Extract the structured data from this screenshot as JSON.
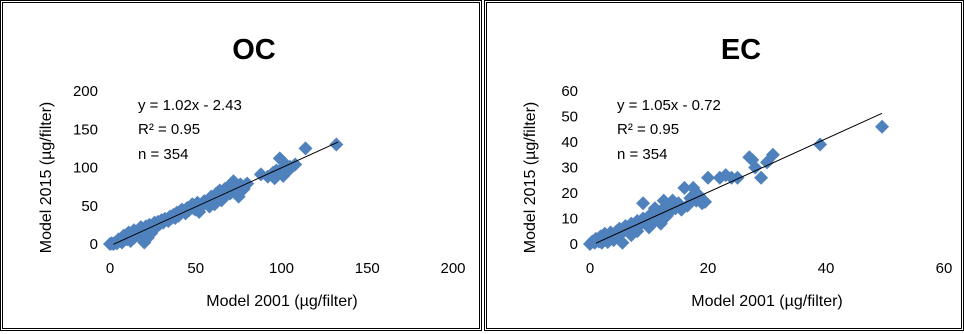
{
  "chart_data": [
    {
      "type": "scatter",
      "title": "OC",
      "xlabel": "Model 2001 (µg/filter)",
      "ylabel": "Model 2015 (µg/filter)",
      "xlim": [
        0,
        200
      ],
      "ylim": [
        0,
        200
      ],
      "xticks": [
        0,
        50,
        100,
        150,
        200
      ],
      "yticks": [
        0,
        50,
        100,
        150,
        200
      ],
      "grid": false,
      "annotations": [
        "y = 1.02x - 2.43",
        "R² = 0.95",
        "n = 354"
      ],
      "trendline": {
        "slope": 1.02,
        "intercept": -2.43,
        "x_range": [
          2,
          133
        ]
      },
      "marker_color": "#4f81bd",
      "series": [
        {
          "points": [
            [
              0,
              0
            ],
            [
              1,
              1
            ],
            [
              2,
              0
            ],
            [
              3,
              2
            ],
            [
              4,
              1
            ],
            [
              5,
              3
            ],
            [
              5,
              6
            ],
            [
              6,
              4
            ],
            [
              7,
              2
            ],
            [
              7,
              8
            ],
            [
              8,
              5
            ],
            [
              8,
              11
            ],
            [
              9,
              9
            ],
            [
              10,
              6
            ],
            [
              10,
              13
            ],
            [
              11,
              15
            ],
            [
              12,
              11
            ],
            [
              12,
              4
            ],
            [
              13,
              14
            ],
            [
              14,
              8
            ],
            [
              14,
              18
            ],
            [
              15,
              12
            ],
            [
              16,
              15
            ],
            [
              17,
              10
            ],
            [
              18,
              19
            ],
            [
              18,
              22
            ],
            [
              19,
              14
            ],
            [
              20,
              2
            ],
            [
              20,
              17
            ],
            [
              21,
              23
            ],
            [
              22,
              8
            ],
            [
              22,
              18
            ],
            [
              23,
              25
            ],
            [
              24,
              14
            ],
            [
              25,
              21
            ],
            [
              26,
              28
            ],
            [
              27,
              22
            ],
            [
              28,
              29
            ],
            [
              29,
              26
            ],
            [
              30,
              31
            ],
            [
              31,
              28
            ],
            [
              32,
              33
            ],
            [
              34,
              30
            ],
            [
              35,
              36
            ],
            [
              36,
              34
            ],
            [
              37,
              38
            ],
            [
              38,
              34
            ],
            [
              39,
              41
            ],
            [
              40,
              37
            ],
            [
              41,
              43
            ],
            [
              42,
              45
            ],
            [
              44,
              40
            ],
            [
              45,
              47
            ],
            [
              46,
              44
            ],
            [
              48,
              52
            ],
            [
              49,
              46
            ],
            [
              50,
              45
            ],
            [
              51,
              54
            ],
            [
              52,
              42
            ],
            [
              53,
              48
            ],
            [
              55,
              56
            ],
            [
              57,
              53
            ],
            [
              58,
              49
            ],
            [
              59,
              62
            ],
            [
              60,
              58
            ],
            [
              61,
              52
            ],
            [
              62,
              66
            ],
            [
              63,
              61
            ],
            [
              64,
              70
            ],
            [
              65,
              57
            ],
            [
              66,
              67
            ],
            [
              67,
              72
            ],
            [
              68,
              64
            ],
            [
              69,
              75
            ],
            [
              70,
              66
            ],
            [
              71,
              79
            ],
            [
              72,
              82
            ],
            [
              73,
              70
            ],
            [
              74,
              76
            ],
            [
              75,
              62
            ],
            [
              76,
              78
            ],
            [
              77,
              74
            ],
            [
              78,
              72
            ],
            [
              79,
              77
            ],
            [
              80,
              79
            ],
            [
              88,
              91
            ],
            [
              92,
              88
            ],
            [
              95,
              93
            ],
            [
              96,
              86
            ],
            [
              97,
              96
            ],
            [
              98,
              92
            ],
            [
              99,
              112
            ],
            [
              100,
              98
            ],
            [
              101,
              89
            ],
            [
              102,
              105
            ],
            [
              103,
              100
            ],
            [
              104,
              96
            ],
            [
              105,
              101
            ],
            [
              108,
              104
            ],
            [
              114,
              125
            ],
            [
              132,
              130
            ]
          ]
        }
      ]
    },
    {
      "type": "scatter",
      "title": "EC",
      "xlabel": "Model 2001 (µg/filter)",
      "ylabel": "Model 2015 (µg/filter)",
      "xlim": [
        0,
        60
      ],
      "ylim": [
        0,
        60
      ],
      "xticks": [
        0,
        20,
        40,
        60
      ],
      "yticks": [
        0,
        10,
        20,
        30,
        40,
        50,
        60
      ],
      "grid": false,
      "annotations": [
        "y = 1.05x - 0.72",
        "R² = 0.95",
        "n = 354"
      ],
      "trendline": {
        "slope": 1.05,
        "intercept": -0.72,
        "x_range": [
          1,
          49.5
        ]
      },
      "marker_color": "#4f81bd",
      "series": [
        {
          "points": [
            [
              0,
              0
            ],
            [
              0.4,
              1
            ],
            [
              0.8,
              0.5
            ],
            [
              1,
              2
            ],
            [
              1.5,
              1
            ],
            [
              1.8,
              3
            ],
            [
              2,
              0.5
            ],
            [
              2.2,
              2
            ],
            [
              2.5,
              4
            ],
            [
              3,
              2.5
            ],
            [
              3,
              0.8
            ],
            [
              3.5,
              4.5
            ],
            [
              4,
              3
            ],
            [
              4,
              1.5
            ],
            [
              4.5,
              5
            ],
            [
              5,
              3.5
            ],
            [
              5,
              6
            ],
            [
              5.5,
              0.5
            ],
            [
              5.5,
              4.5
            ],
            [
              6,
              7
            ],
            [
              6.5,
              5
            ],
            [
              7,
              8
            ],
            [
              7,
              3.5
            ],
            [
              7.5,
              6.5
            ],
            [
              8,
              9
            ],
            [
              8,
              5
            ],
            [
              8.5,
              7.5
            ],
            [
              9,
              16
            ],
            [
              9,
              10
            ],
            [
              9.5,
              8
            ],
            [
              10,
              11
            ],
            [
              10,
              6.5
            ],
            [
              10.5,
              12
            ],
            [
              11,
              9
            ],
            [
              11,
              14
            ],
            [
              11.5,
              10.5
            ],
            [
              12,
              13
            ],
            [
              12,
              8
            ],
            [
              12.5,
              17
            ],
            [
              13,
              15
            ],
            [
              13,
              11
            ],
            [
              13.5,
              12.5
            ],
            [
              14,
              17
            ],
            [
              14.5,
              14
            ],
            [
              15,
              16
            ],
            [
              15.5,
              13.5
            ],
            [
              16,
              22
            ],
            [
              16.5,
              15
            ],
            [
              17,
              18
            ],
            [
              17.5,
              22
            ],
            [
              18,
              17
            ],
            [
              18.5,
              19
            ],
            [
              19,
              16
            ],
            [
              19.5,
              16.5
            ],
            [
              20,
              26
            ],
            [
              22,
              26
            ],
            [
              23,
              27
            ],
            [
              24,
              26
            ],
            [
              25,
              26
            ],
            [
              27,
              34
            ],
            [
              27.5,
              33
            ],
            [
              28,
              30
            ],
            [
              29,
              26
            ],
            [
              30,
              32
            ],
            [
              31,
              35
            ],
            [
              39,
              39
            ],
            [
              49.5,
              46
            ]
          ]
        }
      ]
    }
  ]
}
